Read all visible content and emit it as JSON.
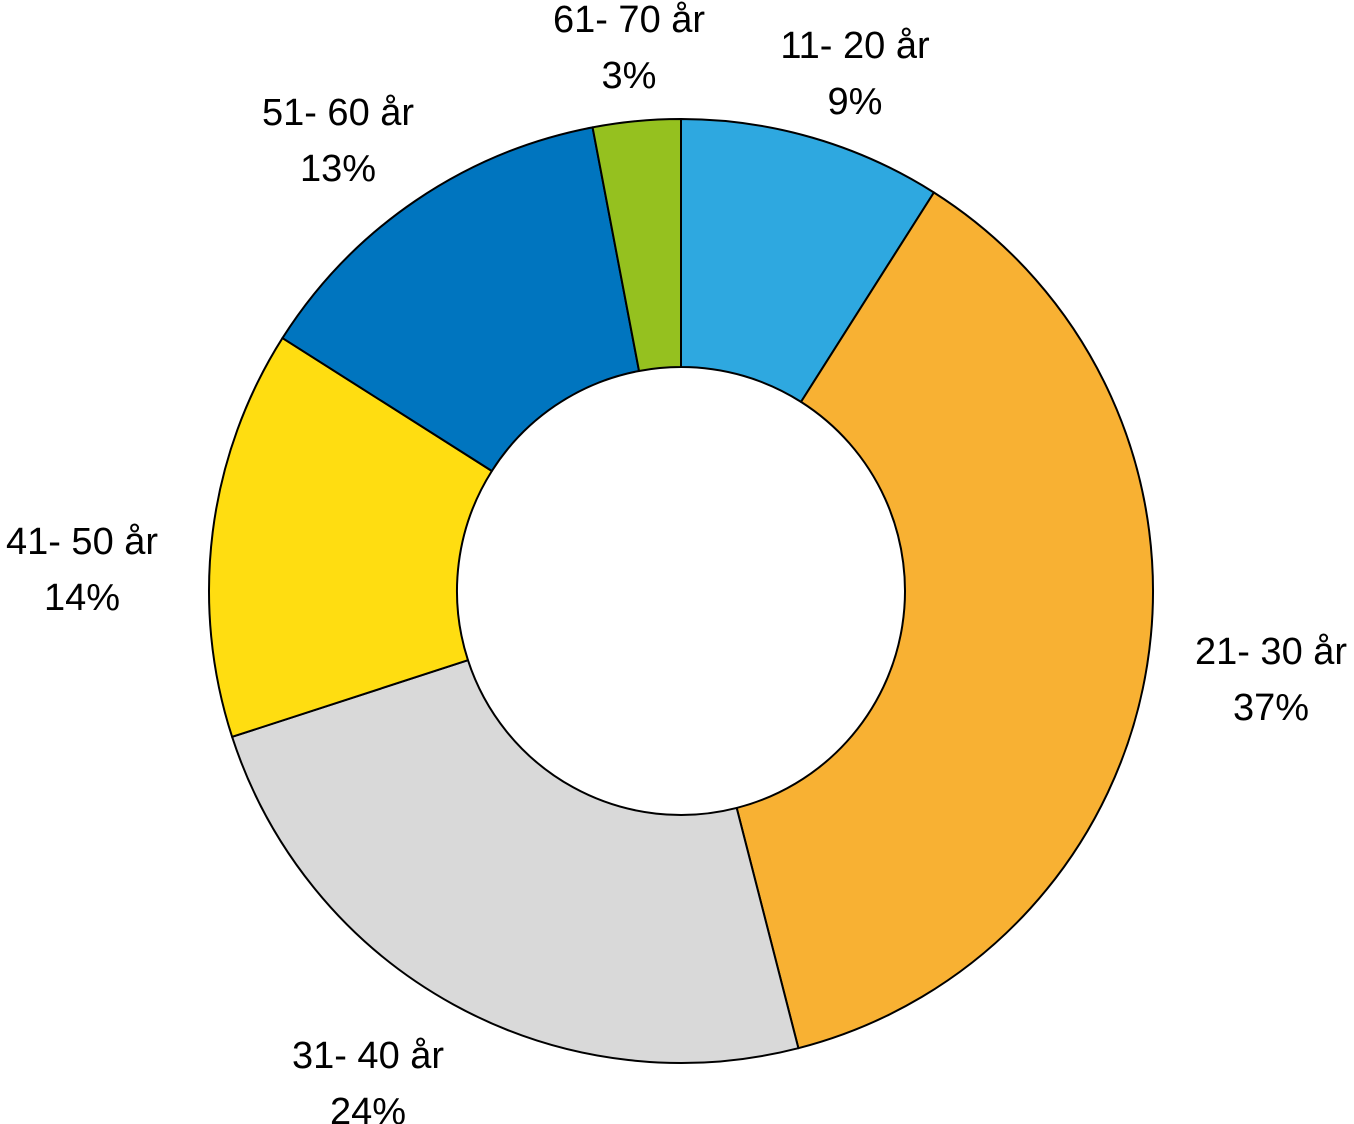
{
  "chart_data": {
    "type": "pie",
    "variant": "donut",
    "title": "",
    "slices": [
      {
        "label": "11- 20 år",
        "value": 9,
        "value_label": "9%",
        "color": "#2EA8E0"
      },
      {
        "label": "21- 30 år",
        "value": 37,
        "value_label": "37%",
        "color": "#F8B133"
      },
      {
        "label": "31- 40 år",
        "value": 24,
        "value_label": "24%",
        "color": "#D9D9D9"
      },
      {
        "label": "41- 50 år",
        "value": 14,
        "value_label": "14%",
        "color": "#FFDD11"
      },
      {
        "label": "51- 60 år",
        "value": 13,
        "value_label": "13%",
        "color": "#0075BF"
      },
      {
        "label": "61- 70 år",
        "value": 3,
        "value_label": "3%",
        "color": "#95C11F"
      }
    ],
    "start_angle": "12 o'clock",
    "direction": "clockwise",
    "legend": "none",
    "edge_color": "#000000"
  }
}
